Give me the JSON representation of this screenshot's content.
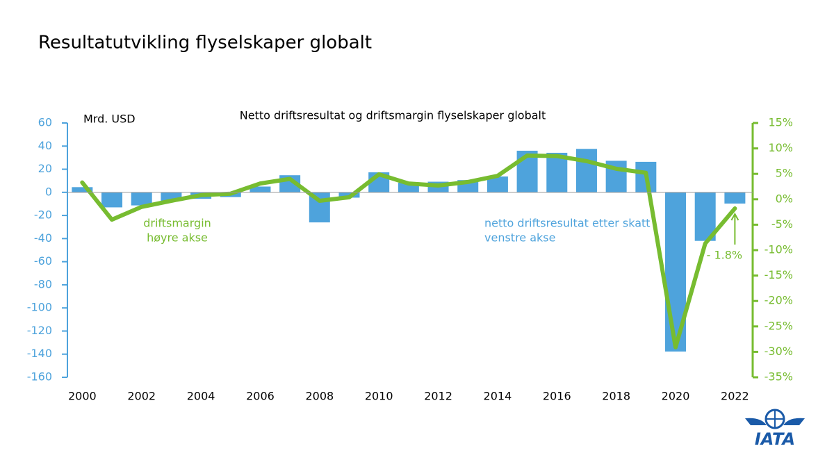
{
  "title": "Resultatutvikling flyselskaper globalt",
  "logo": "IATA",
  "chart_data": {
    "type": "bar",
    "title": "Netto driftsresultat og driftsmargin flyselskaper globalt",
    "y_label": "Mrd. USD",
    "x": [
      2000,
      2001,
      2002,
      2003,
      2004,
      2005,
      2006,
      2007,
      2008,
      2009,
      2010,
      2011,
      2012,
      2013,
      2014,
      2015,
      2016,
      2017,
      2018,
      2019,
      2020,
      2021,
      2022
    ],
    "xlim": [
      1999.5,
      2022.6
    ],
    "xticks": [
      2000,
      2002,
      2004,
      2006,
      2008,
      2010,
      2012,
      2014,
      2016,
      2018,
      2020,
      2022
    ],
    "ylim": [
      -160,
      60
    ],
    "yticks": [
      60,
      40,
      20,
      0,
      -20,
      -40,
      -60,
      -80,
      -100,
      -120,
      -140,
      -160
    ],
    "y2lim": [
      -35,
      15
    ],
    "y2ticks": [
      {
        "value": 15,
        "label": "15%"
      },
      {
        "value": 10,
        "label": "10%"
      },
      {
        "value": 5,
        "label": "5%"
      },
      {
        "value": 0,
        "label": "0%"
      },
      {
        "value": -5,
        "label": "-5%"
      },
      {
        "value": -10,
        "label": "-10%"
      },
      {
        "value": -15,
        "label": "-15%"
      },
      {
        "value": -20,
        "label": "-20%"
      },
      {
        "value": -25,
        "label": "-25%"
      },
      {
        "value": -30,
        "label": "-30%"
      },
      {
        "value": -35,
        "label": "-35%"
      }
    ],
    "grid": false,
    "series": [
      {
        "name": "netto driftsresultat etter skatt",
        "type": "bar",
        "color": "#4ea3dc",
        "note": "venstre akse",
        "values": [
          4.5,
          -13,
          -11.3,
          -7.5,
          -5.6,
          -4.1,
          5,
          14.8,
          -26,
          -4.6,
          17.3,
          8.3,
          9.2,
          10.6,
          13.7,
          36,
          34.2,
          37.6,
          27.3,
          26.4,
          -137.7,
          -42,
          -9.7
        ]
      },
      {
        "name": "driftsmargin",
        "type": "line",
        "color": "#77bc30",
        "axis": "y2",
        "note": "høyre akse",
        "values": [
          3.3,
          -4,
          -1.5,
          -0.3,
          0.8,
          1.1,
          3.1,
          4.0,
          -0.3,
          0.4,
          4.9,
          3.1,
          2.7,
          3.4,
          4.6,
          8.6,
          8.5,
          7.5,
          6.0,
          5.2,
          -29.1,
          -8.7,
          -1.8
        ],
        "value_labels": {
          "22": "- 1.8%"
        }
      }
    ]
  }
}
